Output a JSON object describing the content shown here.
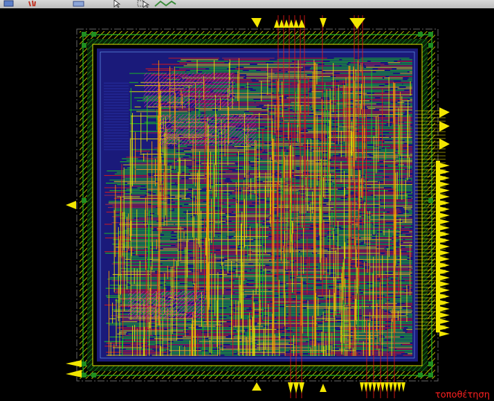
{
  "toolbar": {
    "buttons": [
      {
        "name": "window-icon"
      },
      {
        "name": "hand-tool-icon"
      },
      {
        "name": "rectangle-select-icon"
      },
      {
        "name": "pointer-tool-icon"
      },
      {
        "name": "select-zoom-icon"
      },
      {
        "name": "route-tool-icon"
      }
    ]
  },
  "layout_view": {
    "caption": "τοποθέτηση",
    "colors": {
      "background": "#000000",
      "core_fill": "#1a1a7a",
      "metal_green": "#19d219",
      "metal_yellow": "#e8e400",
      "metal_orange": "#ff9a00",
      "metal_red": "#e01818",
      "metal_magenta": "#d020b0",
      "pin_yellow": "#f2e600",
      "power_ring_green": "#22a022",
      "caption_red": "#ff2020"
    }
  }
}
